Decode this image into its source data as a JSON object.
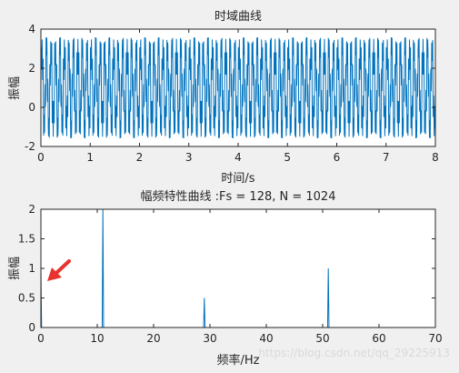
{
  "colors": {
    "figure_bg": "#f0f0f0",
    "axes_bg": "#ffffff",
    "axis_line": "#262626",
    "series": "#0072bd",
    "annotation_arrow": "#e8322f",
    "watermark": "#d9d9d9"
  },
  "watermark": "https://blog.csdn.net/qq_29225913",
  "annotation": {
    "type": "arrow",
    "color": "red",
    "panel": 1
  },
  "chart_data": [
    {
      "type": "line",
      "title": "时域曲线",
      "xlabel": "时间/s",
      "ylabel": "振幅",
      "xlim": [
        0,
        8
      ],
      "ylim": [
        -2,
        4
      ],
      "x_ticks": [
        0,
        1,
        2,
        3,
        4,
        5,
        6,
        7,
        8
      ],
      "y_ticks": [
        -2,
        0,
        2,
        4
      ],
      "grid": false,
      "series": [
        {
          "components": [
            {
              "freq_hz": 11,
              "amp": 2
            },
            {
              "freq_hz": 29,
              "amp": 0.5
            },
            {
              "freq_hz": 51,
              "amp": 1
            }
          ],
          "offset": 1,
          "y_range": [
            -1.5,
            3.5
          ]
        }
      ]
    },
    {
      "type": "line",
      "title": "幅频特性曲线 :Fs = 128, N = 1024",
      "xlabel": "频率/Hz",
      "ylabel": "振幅",
      "xlim": [
        0,
        70
      ],
      "ylim": [
        0,
        2
      ],
      "x_ticks": [
        0,
        10,
        20,
        30,
        40,
        50,
        60,
        70
      ],
      "y_ticks": [
        0,
        0.5,
        1,
        1.5,
        2
      ],
      "grid": false,
      "series": [
        {
          "x": [
            0,
            0.125,
            10.875,
            11,
            11.125,
            28.875,
            29,
            29.125,
            50.875,
            51,
            51.125,
            64
          ],
          "y": [
            1,
            0,
            0,
            2,
            0,
            0,
            0.5,
            0,
            0,
            1,
            0,
            0
          ]
        }
      ]
    }
  ]
}
